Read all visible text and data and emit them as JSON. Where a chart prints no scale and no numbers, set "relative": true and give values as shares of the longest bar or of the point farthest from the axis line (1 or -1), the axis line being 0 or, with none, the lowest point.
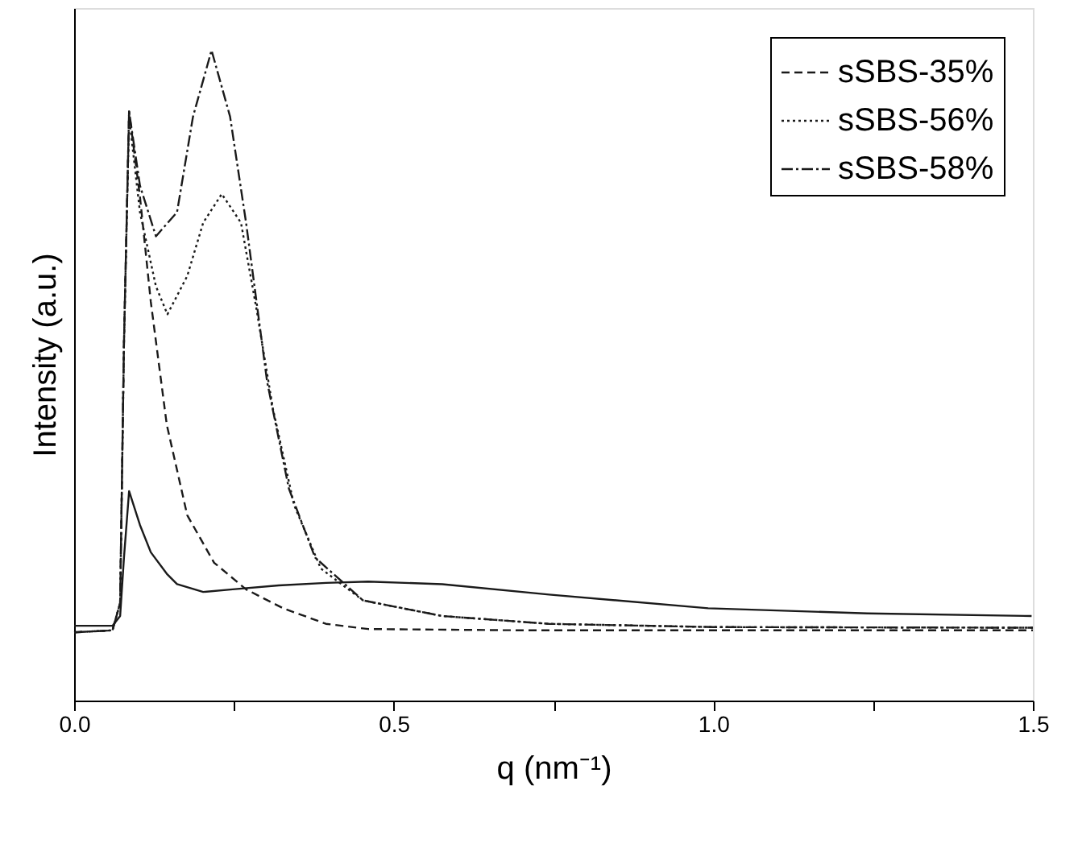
{
  "chart_data": {
    "type": "line",
    "relative": true,
    "xlabel": "q (nm⁻¹)",
    "ylabel": "Intensity (a.u.)",
    "xlim": [
      0,
      1.5
    ],
    "xticks": [
      {
        "value": 0,
        "label": "0.0"
      },
      {
        "value": 0.25,
        "label": null
      },
      {
        "value": 0.5,
        "label": "0.5"
      },
      {
        "value": 0.75,
        "label": null
      },
      {
        "value": 1,
        "label": "1.0"
      },
      {
        "value": 1.25,
        "label": null
      },
      {
        "value": 1.5,
        "label": "1.5"
      }
    ],
    "legend": "top right",
    "grid": false,
    "marker": "none",
    "tick_labels": "x",
    "series": [
      {
        "color": "#1a1a1a",
        "line_style": "solid",
        "x": [
          0,
          0.06,
          0.072,
          0.078,
          0.086,
          0.103,
          0.12,
          0.145,
          0.161,
          0.202,
          0.248,
          0.32,
          0.394,
          0.46,
          0.576,
          0.743,
          0.992,
          1.241,
          1.498
        ],
        "values": [
          0.115,
          0.115,
          0.13,
          0.22,
          0.322,
          0.27,
          0.228,
          0.195,
          0.179,
          0.167,
          0.171,
          0.177,
          0.181,
          0.183,
          0.179,
          0.163,
          0.142,
          0.134,
          0.13
        ]
      },
      {
        "name": "sSBS-35%",
        "color": "#1a1a1a",
        "line_style": "dashed",
        "x": [
          0,
          0.06,
          0.072,
          0.078,
          0.086,
          0.103,
          0.12,
          0.145,
          0.177,
          0.219,
          0.269,
          0.327,
          0.394,
          0.46,
          0.7,
          1.0,
          1.5
        ],
        "values": [
          0.105,
          0.108,
          0.15,
          0.55,
          0.906,
          0.775,
          0.613,
          0.424,
          0.285,
          0.212,
          0.171,
          0.142,
          0.118,
          0.11,
          0.108,
          0.108,
          0.108
        ]
      },
      {
        "name": "sSBS-56%",
        "color": "#1a1a1a",
        "line_style": "dotted",
        "x": [
          0,
          0.06,
          0.072,
          0.078,
          0.086,
          0.103,
          0.128,
          0.146,
          0.177,
          0.202,
          0.231,
          0.261,
          0.285,
          0.311,
          0.344,
          0.386,
          0.452,
          0.576,
          0.743,
          1.0,
          1.5
        ],
        "values": [
          0.105,
          0.108,
          0.15,
          0.55,
          0.898,
          0.751,
          0.637,
          0.594,
          0.653,
          0.735,
          0.779,
          0.735,
          0.604,
          0.449,
          0.301,
          0.203,
          0.154,
          0.13,
          0.118,
          0.113,
          0.112
        ]
      },
      {
        "name": "sSBS-58%",
        "color": "#1a1a1a",
        "line_style": "dashdot",
        "x": [
          0,
          0.06,
          0.072,
          0.078,
          0.086,
          0.103,
          0.128,
          0.161,
          0.186,
          0.215,
          0.244,
          0.269,
          0.302,
          0.336,
          0.377,
          0.452,
          0.576,
          0.743,
          1.0,
          1.5
        ],
        "values": [
          0.105,
          0.108,
          0.15,
          0.55,
          0.906,
          0.792,
          0.714,
          0.751,
          0.898,
          1.0,
          0.898,
          0.735,
          0.49,
          0.326,
          0.22,
          0.154,
          0.13,
          0.118,
          0.113,
          0.112
        ]
      }
    ]
  }
}
